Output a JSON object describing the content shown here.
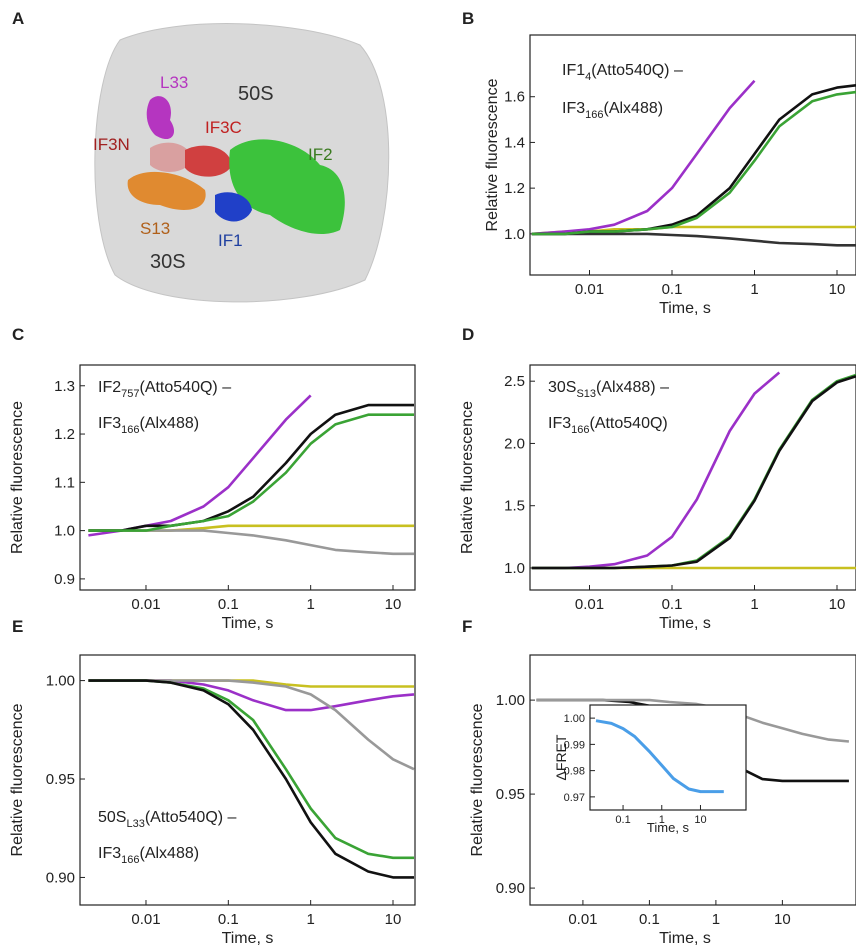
{
  "panel_a": {
    "panel": "A",
    "labels": [
      "L33",
      "50S",
      "IF3N",
      "IF3C",
      "IF2",
      "S13",
      "IF1",
      "30S"
    ]
  },
  "chart_data": [
    {
      "type": "line",
      "panel": "B",
      "xlabel": "Time, s",
      "ylabel": "Relative fluorescence",
      "xscale": "log",
      "annotation": [
        {
          "text": "IF1",
          "sub": "4",
          "rest": "(Atto540Q) –"
        },
        {
          "text": "IF3",
          "sub": "166",
          "rest": "(Alx488)"
        }
      ],
      "xlim": [
        0.0019,
        17
      ],
      "xticks": [
        0.01,
        0.1,
        1,
        10
      ],
      "ylim": [
        0.82,
        1.87
      ],
      "yticks": [
        {
          "value": 1,
          "label": "1.0"
        },
        1.2,
        1.4,
        1.6
      ],
      "x": [
        0.002,
        0.005,
        0.01,
        0.02,
        0.05,
        0.1,
        0.2,
        0.5,
        1,
        2,
        5,
        10,
        17
      ],
      "series": [
        {
          "color": "#c8c020",
          "values": [
            1.0,
            1.01,
            1.01,
            1.02,
            1.02,
            1.03,
            1.03,
            1.03,
            1.03,
            1.03,
            1.03,
            1.03,
            1.03
          ]
        },
        {
          "color": "#333333",
          "values": [
            1.0,
            1.0,
            1.0,
            1.0,
            1.0,
            0.995,
            0.99,
            0.98,
            0.97,
            0.96,
            0.955,
            0.95,
            0.95
          ]
        },
        {
          "color": "#9b30c8",
          "values": [
            1.0,
            1.01,
            1.02,
            1.04,
            1.1,
            1.2,
            1.35,
            1.55,
            1.67,
            null,
            null,
            null,
            null
          ]
        },
        {
          "color": "#111111",
          "values": [
            1.0,
            1.0,
            1.01,
            1.01,
            1.02,
            1.04,
            1.08,
            1.2,
            1.35,
            1.5,
            1.61,
            1.64,
            1.65
          ]
        },
        {
          "color": "#3aa335",
          "values": [
            1.0,
            1.0,
            1.01,
            1.01,
            1.02,
            1.03,
            1.07,
            1.18,
            1.32,
            1.47,
            1.58,
            1.61,
            1.62
          ]
        }
      ]
    },
    {
      "type": "line",
      "panel": "C",
      "xlabel": "Time, s",
      "ylabel": "Relative fluorescence",
      "xscale": "log",
      "annotation": [
        {
          "text": "IF2",
          "sub": "757",
          "rest": "(Atto540Q) –"
        },
        {
          "text": "IF3",
          "sub": "166",
          "rest": "(Alx488)"
        }
      ],
      "xlim": [
        0.00158,
        18.5
      ],
      "xticks": [
        0.01,
        0.1,
        1,
        10
      ],
      "ylim": [
        0.877,
        1.343
      ],
      "yticks": [
        0.9,
        {
          "value": 1,
          "label": "1.0"
        },
        1.1,
        1.2,
        1.3
      ],
      "x": [
        0.002,
        0.005,
        0.01,
        0.02,
        0.05,
        0.1,
        0.2,
        0.5,
        1,
        2,
        5,
        10,
        18
      ],
      "series": [
        {
          "color": "#c8c020",
          "values": [
            1.0,
            1.0,
            1.0,
            1.0,
            1.005,
            1.01,
            1.01,
            1.01,
            1.01,
            1.01,
            1.01,
            1.01,
            1.01
          ]
        },
        {
          "color": "#999999",
          "values": [
            1.0,
            1.0,
            1.0,
            1.0,
            1.0,
            0.995,
            0.99,
            0.98,
            0.97,
            0.96,
            0.955,
            0.952,
            0.952
          ]
        },
        {
          "color": "#9b30c8",
          "values": [
            0.99,
            1.0,
            1.01,
            1.02,
            1.05,
            1.09,
            1.15,
            1.23,
            1.28,
            null,
            null,
            null,
            null
          ]
        },
        {
          "color": "#111111",
          "values": [
            1.0,
            1.0,
            1.01,
            1.01,
            1.02,
            1.04,
            1.07,
            1.14,
            1.2,
            1.24,
            1.26,
            1.26,
            1.26
          ]
        },
        {
          "color": "#3aa335",
          "values": [
            1.0,
            1.0,
            1.0,
            1.01,
            1.02,
            1.03,
            1.06,
            1.12,
            1.18,
            1.22,
            1.24,
            1.24,
            1.24
          ]
        }
      ]
    },
    {
      "type": "line",
      "panel": "D",
      "xlabel": "Time, s",
      "ylabel": "Relative fluorescence",
      "xscale": "log",
      "annotation": [
        {
          "text": "30S",
          "sub": "S13",
          "rest": "(Alx488) –"
        },
        {
          "text": "IF3",
          "sub": "166",
          "rest": "(Atto540Q)"
        }
      ],
      "xlim": [
        0.0019,
        17
      ],
      "xticks": [
        0.01,
        0.1,
        1,
        10
      ],
      "ylim": [
        0.823,
        2.63
      ],
      "yticks": [
        {
          "value": 1,
          "label": "1.0"
        },
        1.5,
        {
          "value": 2,
          "label": "2.0"
        },
        2.5
      ],
      "x": [
        0.002,
        0.005,
        0.01,
        0.02,
        0.05,
        0.1,
        0.2,
        0.5,
        1,
        2,
        5,
        10,
        17
      ],
      "series": [
        {
          "color": "#c8c020",
          "values": [
            1.0,
            1.0,
            1.0,
            1.0,
            1.0,
            1.0,
            1.0,
            1.0,
            1.0,
            1.0,
            1.0,
            1.0,
            1.0
          ]
        },
        {
          "color": "#9b30c8",
          "values": [
            1.0,
            1.0,
            1.01,
            1.03,
            1.1,
            1.25,
            1.55,
            2.1,
            2.4,
            2.57,
            null,
            null,
            null
          ]
        },
        {
          "color": "#3aa335",
          "values": [
            1.0,
            1.0,
            1.0,
            1.0,
            1.01,
            1.02,
            1.06,
            1.25,
            1.55,
            1.95,
            2.35,
            2.5,
            2.55
          ]
        },
        {
          "color": "#111111",
          "values": [
            1.0,
            1.0,
            1.0,
            1.0,
            1.01,
            1.02,
            1.05,
            1.24,
            1.54,
            1.94,
            2.34,
            2.49,
            2.54
          ]
        }
      ]
    },
    {
      "type": "line",
      "panel": "E",
      "xlabel": "Time, s",
      "ylabel": "Relative fluorescence",
      "xscale": "log",
      "annotation": [
        {
          "text": "50S",
          "sub": "L33",
          "rest": "(Atto540Q) –"
        },
        {
          "text": "IF3",
          "sub": "166",
          "rest": "(Alx488)"
        }
      ],
      "xlim": [
        0.00158,
        18.5
      ],
      "xticks": [
        0.01,
        0.1,
        1,
        10
      ],
      "ylim": [
        0.886,
        1.013
      ],
      "yticks": [
        {
          "value": 0.9,
          "label": "0.90"
        },
        0.95,
        {
          "value": 1,
          "label": "1.00"
        }
      ],
      "x": [
        0.002,
        0.005,
        0.01,
        0.02,
        0.05,
        0.1,
        0.2,
        0.5,
        1,
        2,
        5,
        10,
        18
      ],
      "series": [
        {
          "color": "#c8c020",
          "values": [
            1.0,
            1.0,
            1.0,
            1.0,
            1.0,
            1.0,
            1.0,
            0.998,
            0.997,
            0.997,
            0.997,
            0.997,
            0.997
          ]
        },
        {
          "color": "#9b30c8",
          "values": [
            1.0,
            1.0,
            1.0,
            1.0,
            0.998,
            0.995,
            0.99,
            0.985,
            0.985,
            0.987,
            0.99,
            0.992,
            0.993
          ]
        },
        {
          "color": "#999999",
          "values": [
            1.0,
            1.0,
            1.0,
            1.0,
            1.0,
            1.0,
            0.999,
            0.997,
            0.993,
            0.985,
            0.97,
            0.96,
            0.955
          ]
        },
        {
          "color": "#3aa335",
          "values": [
            1.0,
            1.0,
            1.0,
            0.999,
            0.996,
            0.99,
            0.98,
            0.955,
            0.935,
            0.92,
            0.912,
            0.91,
            0.91
          ]
        },
        {
          "color": "#111111",
          "values": [
            1.0,
            1.0,
            1.0,
            0.999,
            0.995,
            0.988,
            0.975,
            0.95,
            0.928,
            0.912,
            0.903,
            0.9,
            0.9
          ]
        }
      ]
    },
    {
      "type": "line",
      "panel": "F",
      "xlabel": "Time, s",
      "ylabel": "Relative fluorescence",
      "xscale": "log",
      "xlim": [
        0.0016,
        128
      ],
      "xticks": [
        0.01,
        0.1,
        1,
        10
      ],
      "ylim": [
        0.891,
        1.024
      ],
      "yticks": [
        {
          "value": 0.9,
          "label": "0.90"
        },
        0.95,
        {
          "value": 1,
          "label": "1.00"
        }
      ],
      "x": [
        0.002,
        0.005,
        0.01,
        0.02,
        0.05,
        0.1,
        0.2,
        0.5,
        1,
        2,
        5,
        10,
        20,
        50,
        100
      ],
      "series": [
        {
          "color": "#111111",
          "values": [
            1.0,
            1.0,
            1.0,
            1.0,
            0.999,
            0.997,
            0.993,
            0.985,
            0.975,
            0.965,
            0.958,
            0.957,
            0.957,
            0.957,
            0.957
          ]
        },
        {
          "color": "#999999",
          "values": [
            1.0,
            1.0,
            1.0,
            1.0,
            1.0,
            1.0,
            0.999,
            0.998,
            0.996,
            0.993,
            0.988,
            0.985,
            0.982,
            0.979,
            0.978
          ]
        }
      ]
    },
    {
      "type": "line",
      "xlabel": "Time, s",
      "ylabel": "ΔFRET",
      "xscale": "log",
      "xlim": [
        0.014,
        150
      ],
      "xticks": [
        0.1,
        1,
        10
      ],
      "ylim": [
        0.965,
        1.005
      ],
      "yticks": [
        0.97,
        0.98,
        0.99,
        {
          "value": 1,
          "label": "1.00"
        }
      ],
      "x": [
        0.02,
        0.05,
        0.1,
        0.2,
        0.5,
        1,
        2,
        5,
        10,
        20,
        40
      ],
      "series": [
        {
          "color": "#4a9ee8",
          "values": [
            0.999,
            0.998,
            0.996,
            0.993,
            0.987,
            0.982,
            0.977,
            0.973,
            0.972,
            0.972,
            0.972
          ]
        }
      ]
    }
  ]
}
